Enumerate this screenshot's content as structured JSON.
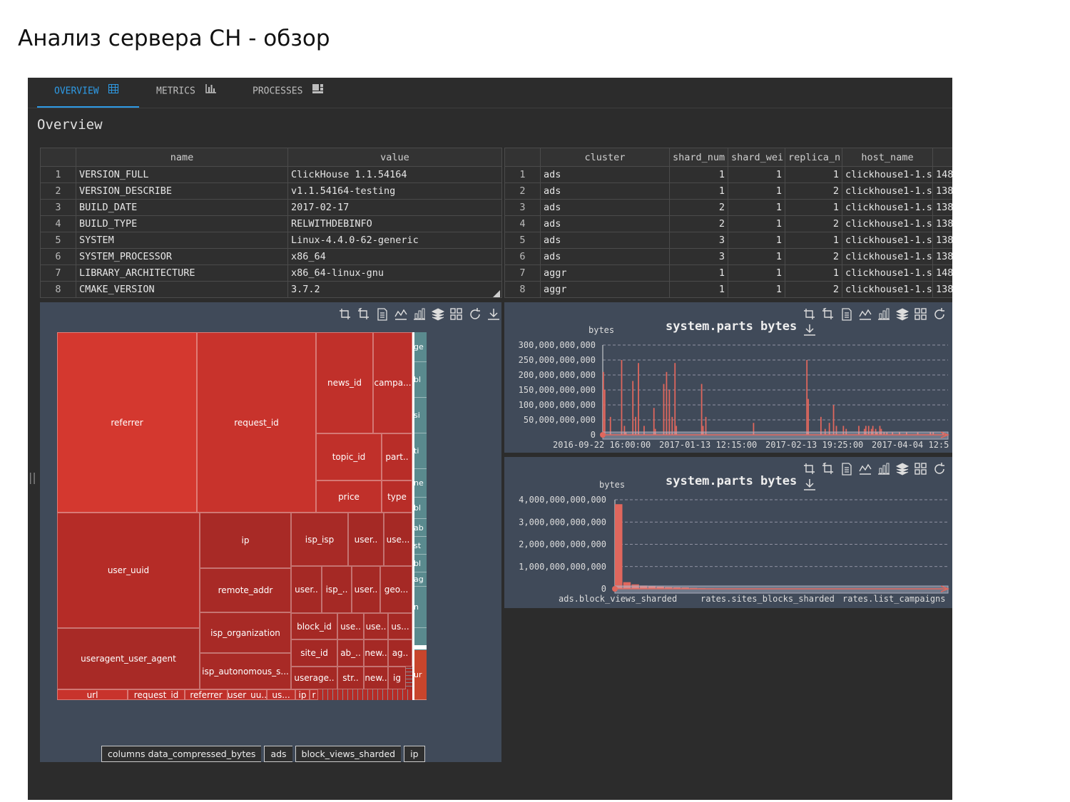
{
  "page_title": "Анализ сервера CH - обзор",
  "tabs": [
    {
      "label": "OVERVIEW",
      "icon": "table-icon",
      "active": true
    },
    {
      "label": "METRICS",
      "icon": "bar-chart-icon",
      "active": false
    },
    {
      "label": "PROCESSES",
      "icon": "processes-icon",
      "active": false
    }
  ],
  "section_title": "Overview",
  "build_table": {
    "columns": [
      "",
      "name",
      "value"
    ],
    "rows": [
      [
        "1",
        "VERSION_FULL",
        "ClickHouse 1.1.54164"
      ],
      [
        "2",
        "VERSION_DESCRIBE",
        "v1.1.54164-testing"
      ],
      [
        "3",
        "BUILD_DATE",
        "2017-02-17"
      ],
      [
        "4",
        "BUILD_TYPE",
        "RELWITHDEBINFO"
      ],
      [
        "5",
        "SYSTEM",
        "Linux-4.4.0-62-generic"
      ],
      [
        "6",
        "SYSTEM_PROCESSOR",
        "x86_64"
      ],
      [
        "7",
        "LIBRARY_ARCHITECTURE",
        "x86_64-linux-gnu"
      ],
      [
        "8",
        "CMAKE_VERSION",
        "3.7.2"
      ]
    ]
  },
  "cluster_table": {
    "columns": [
      "",
      "cluster",
      "shard_num",
      "shard_wei",
      "replica_n",
      "host_name",
      ""
    ],
    "rows": [
      [
        "1",
        "ads",
        "1",
        "1",
        "1",
        "clickhouse1-1.s",
        "148"
      ],
      [
        "2",
        "ads",
        "1",
        "1",
        "2",
        "clickhouse1-1.s",
        "138"
      ],
      [
        "3",
        "ads",
        "2",
        "1",
        "1",
        "clickhouse1-1.s",
        "138"
      ],
      [
        "4",
        "ads",
        "2",
        "1",
        "2",
        "clickhouse1-1.s",
        "138"
      ],
      [
        "5",
        "ads",
        "3",
        "1",
        "1",
        "clickhouse1-1.s",
        "138"
      ],
      [
        "6",
        "ads",
        "3",
        "1",
        "2",
        "clickhouse1-1.s",
        "138"
      ],
      [
        "7",
        "aggr",
        "1",
        "1",
        "1",
        "clickhouse1-1.s",
        "148"
      ],
      [
        "8",
        "aggr",
        "1",
        "1",
        "2",
        "clickhouse1-1.s",
        "138"
      ]
    ]
  },
  "toolbar_icons": [
    "crop-icon",
    "crop-back-icon",
    "data-view-icon",
    "line-chart-icon",
    "bar-chart-icon",
    "stack-icon",
    "tiled-icon",
    "refresh-icon",
    "download-icon"
  ],
  "treemap": {
    "cells": [
      {
        "label": "referrer",
        "color": "#d4382f"
      },
      {
        "label": "request_id",
        "color": "#c8332c"
      },
      {
        "label": "news_id",
        "color": "#c0302a"
      },
      {
        "label": "campa...",
        "color": "#bc2f2a"
      },
      {
        "label": "topic_id",
        "color": "#c0302a"
      },
      {
        "label": "part..",
        "color": "#b82d28"
      },
      {
        "label": "price",
        "color": "#c0302a"
      },
      {
        "label": "type",
        "color": "#b82d28"
      },
      {
        "label": "user_uuid",
        "color": "#b52c27"
      },
      {
        "label": "ip",
        "color": "#a82a26"
      },
      {
        "label": "isp_isp",
        "color": "#a82a26"
      },
      {
        "label": "user..",
        "color": "#a52925"
      },
      {
        "label": "use...",
        "color": "#a52925"
      },
      {
        "label": "remote_addr",
        "color": "#a82a26"
      },
      {
        "label": "user..",
        "color": "#a52925"
      },
      {
        "label": "isp_..",
        "color": "#a52925"
      },
      {
        "label": "user..",
        "color": "#a52925"
      },
      {
        "label": "geo...",
        "color": "#a52925"
      },
      {
        "label": "useragent_user_agent",
        "color": "#a82a26"
      },
      {
        "label": "isp_organization",
        "color": "#a82a26"
      },
      {
        "label": "block_id",
        "color": "#a52925"
      },
      {
        "label": "use..",
        "color": "#a52925"
      },
      {
        "label": "use..",
        "color": "#a52925"
      },
      {
        "label": "us...",
        "color": "#a52925"
      },
      {
        "label": "isp_autonomous_s...",
        "color": "#a82a26"
      },
      {
        "label": "site_id",
        "color": "#a52925"
      },
      {
        "label": "ab_..",
        "color": "#a52925"
      },
      {
        "label": "new..",
        "color": "#a52925"
      },
      {
        "label": "ag..",
        "color": "#a52925"
      },
      {
        "label": "userage..",
        "color": "#a52925"
      },
      {
        "label": "str..",
        "color": "#a52925"
      },
      {
        "label": "new..",
        "color": "#a52925"
      },
      {
        "label": "ig",
        "color": "#a52925"
      },
      {
        "label": "url",
        "color": "#c8332c"
      },
      {
        "label": "request_id",
        "color": "#c0302a"
      },
      {
        "label": "referrer",
        "color": "#c0302a"
      },
      {
        "label": "user_uu..",
        "color": "#bc2f2a"
      },
      {
        "label": "us...",
        "color": "#bc2f2a"
      },
      {
        "label": "ip",
        "color": "#b82d28"
      },
      {
        "label": "r",
        "color": "#b82d28"
      }
    ],
    "strip_labels": [
      "ge",
      "bl",
      "si",
      "ti",
      "ne",
      "bl",
      "ab",
      "st",
      "bl",
      "ag",
      "n",
      "ur"
    ]
  },
  "breadcrumb": [
    "columns data_compressed_bytes",
    "ads",
    "block_views_sharded",
    "ip"
  ],
  "chart_data": [
    {
      "type": "bar",
      "title": "system.parts bytes",
      "ylabel": "bytes",
      "ylim": [
        0,
        300000000000
      ],
      "yticks": [
        "300,000,000,000",
        "250,000,000,000",
        "200,000,000,000",
        "150,000,000,000",
        "100,000,000,000",
        "50,000,000,000",
        "0"
      ],
      "xticks": [
        "2016-09-22 16:00:00",
        "2017-01-13 12:15:00",
        "2017-02-13 19:25:00",
        "2017-04-04 12:5"
      ],
      "values": [
        210,
        150,
        0,
        0,
        0,
        60,
        0,
        0,
        0,
        0,
        0,
        0,
        0,
        250,
        0,
        30,
        10,
        0,
        0,
        0,
        0,
        180,
        0,
        60,
        0,
        240,
        0,
        0,
        0,
        30,
        0,
        0,
        0,
        0,
        0,
        0,
        90,
        20,
        0,
        0,
        0,
        0,
        0,
        170,
        0,
        210,
        0,
        150,
        0,
        60,
        0,
        240,
        30,
        0,
        0,
        0,
        0,
        0,
        0,
        0,
        0,
        0,
        0,
        0,
        0,
        0,
        0,
        0,
        0,
        0,
        170,
        30,
        0,
        60,
        0,
        0,
        0,
        0,
        0,
        0,
        0,
        0,
        0,
        0,
        0,
        0,
        0,
        0,
        0,
        0,
        0,
        0,
        0,
        0,
        0,
        0,
        0,
        0,
        0,
        0,
        0,
        0,
        0,
        0,
        0,
        0,
        0,
        40,
        0,
        0,
        0,
        0,
        0,
        0,
        0,
        0,
        0,
        0,
        0,
        0,
        0,
        0,
        0,
        0,
        0,
        0,
        0,
        0,
        0,
        0,
        0,
        0,
        0,
        0,
        0,
        0,
        0,
        0,
        0,
        0,
        0,
        0,
        0,
        0,
        0,
        250,
        120,
        0,
        0,
        0,
        0,
        0,
        0,
        0,
        0,
        60,
        0,
        0,
        20,
        0,
        0,
        40,
        0,
        0,
        100,
        0,
        30,
        0,
        0,
        0,
        0,
        30,
        0,
        20,
        0,
        0,
        0,
        0,
        0,
        0,
        0,
        0,
        30,
        0,
        0,
        0,
        20,
        30,
        0,
        30,
        0,
        20,
        30,
        0,
        20,
        10,
        0,
        30,
        20,
        0,
        10,
        0,
        10,
        0,
        0,
        0,
        10,
        0,
        0,
        0,
        0,
        10,
        0,
        0,
        0,
        0,
        10,
        0,
        0,
        0,
        0,
        0,
        0,
        0,
        10,
        0,
        0,
        0,
        0,
        0,
        0,
        0,
        0,
        10,
        0,
        10,
        0,
        0,
        0,
        0,
        0,
        0,
        10,
        0,
        0,
        0
      ]
    },
    {
      "type": "bar",
      "title": "system.parts bytes",
      "ylabel": "bytes",
      "ylim": [
        0,
        4000000000000
      ],
      "yticks": [
        "4,000,000,000,000",
        "3,000,000,000,000",
        "2,000,000,000,000",
        "1,000,000,000,000",
        "0"
      ],
      "xticks": [
        "ads.block_views_sharded",
        "rates.sites_blocks_sharded",
        "rates.list_campaigns"
      ],
      "values": [
        3800,
        300,
        200,
        150,
        120,
        100,
        80,
        70,
        60,
        40,
        30,
        20,
        10,
        10,
        5,
        5,
        5,
        0,
        0,
        0,
        0,
        0,
        0,
        0,
        0,
        0,
        0,
        0,
        0,
        0,
        0,
        0,
        0,
        0,
        0,
        0,
        0,
        0,
        0,
        0
      ]
    }
  ]
}
